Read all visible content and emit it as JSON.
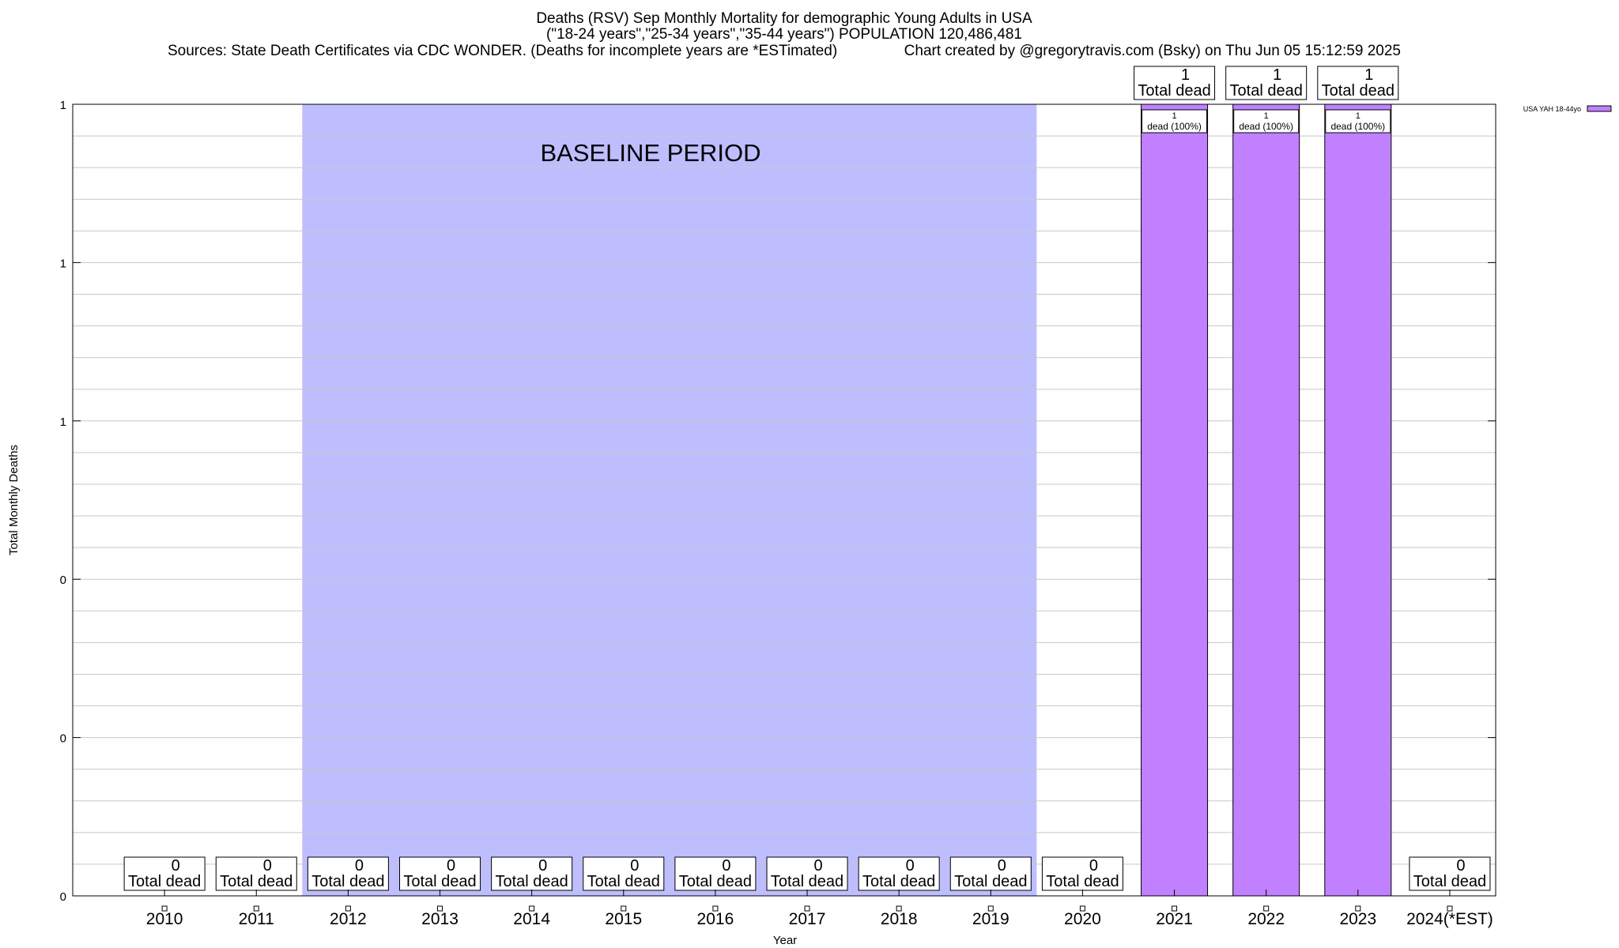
{
  "title_lines": [
    "Deaths (RSV) Sep Monthly Mortality for demographic Young Adults in USA",
    "(\"18-24 years\",\"25-34 years\",\"35-44 years\") POPULATION 120,486,481",
    "Sources: State Death Certificates via CDC WONDER. (Deaths for incomplete years are *ESTimated)                Chart created by @gregorytravis.com (Bsky) on Thu Jun 05 15:12:59 2025"
  ],
  "baseline_label": "BASELINE PERIOD",
  "legend_label": "USA YAH 18-44yo",
  "colors": {
    "bar": "#c080ff",
    "baseline": "#bebeff",
    "grid": "#c8c8c8"
  },
  "chart_data": {
    "type": "bar",
    "xlabel": "Year",
    "ylabel": "Total Monthly Deaths",
    "ylim": [
      0,
      1
    ],
    "y_tick_labels": [
      "0",
      "0",
      "0",
      "1",
      "1",
      "1"
    ],
    "categories": [
      "2010",
      "2011",
      "2012",
      "2013",
      "2014",
      "2015",
      "2016",
      "2017",
      "2018",
      "2019",
      "2020",
      "2021",
      "2022",
      "2023",
      "2024(*EST)"
    ],
    "series": [
      {
        "name": "USA YAH 18-44yo",
        "values": [
          0,
          0,
          0,
          0,
          0,
          0,
          0,
          0,
          0,
          0,
          0,
          1,
          1,
          1,
          0
        ]
      }
    ],
    "total_label": "Total dead",
    "inner_label": "dead (100%)",
    "baseline_period": [
      "2012",
      "2019"
    ]
  }
}
